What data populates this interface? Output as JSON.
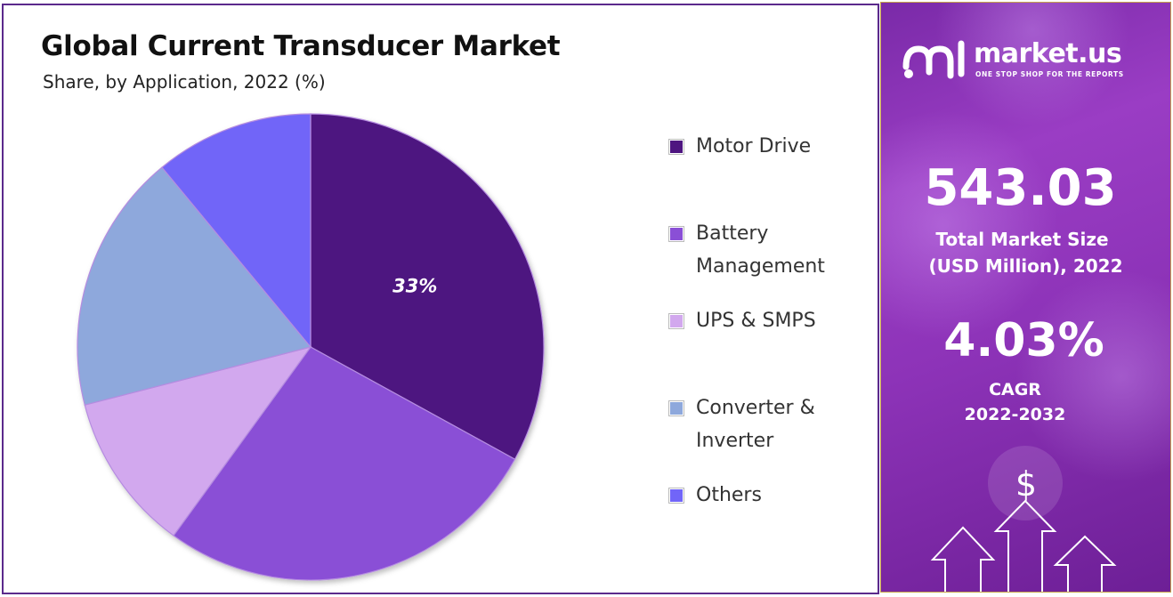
{
  "chart_data": {
    "type": "pie",
    "title": "Global Current Transducer Market",
    "subtitle": "Share, by Application, 2022 (%)",
    "categories": [
      "Motor Drive",
      "Battery Management",
      "UPS & SMPS",
      "Converter & Inverter",
      "Others"
    ],
    "values": [
      33,
      27,
      11,
      18,
      11
    ],
    "data_labels": [
      "33%",
      "",
      "",
      "",
      ""
    ],
    "colors": [
      "#4e1580",
      "#8a4fd6",
      "#d2a8ee",
      "#8ea8dc",
      "#7165f8"
    ],
    "legend_position": "right",
    "start_angle_deg": 0,
    "direction": "clockwise"
  },
  "legend": {
    "items": [
      {
        "label_lines": [
          "Motor Drive"
        ],
        "color": "#4e1580"
      },
      {
        "label_lines": [
          "Battery",
          "Management"
        ],
        "color": "#8a4fd6"
      },
      {
        "label_lines": [
          "UPS & SMPS"
        ],
        "color": "#d2a8ee"
      },
      {
        "label_lines": [
          "Converter &",
          "Inverter"
        ],
        "color": "#8ea8dc"
      },
      {
        "label_lines": [
          "Others"
        ],
        "color": "#7165f8"
      }
    ]
  },
  "sidebar": {
    "brand_name": "market.us",
    "tagline": "ONE STOP SHOP FOR THE REPORTS",
    "market_size_value": "543.03",
    "market_size_label_line1": "Total Market Size",
    "market_size_label_line2": "(USD Million), 2022",
    "cagr_value": "4.03%",
    "cagr_label": "CAGR",
    "cagr_period": "2022-2032",
    "dollar_symbol": "$",
    "logo_icon": "market-us-logo-icon",
    "decor_icons": [
      "dollar-coin-icon",
      "growth-arrows-icon"
    ],
    "accent_color": "#8d33b8"
  }
}
